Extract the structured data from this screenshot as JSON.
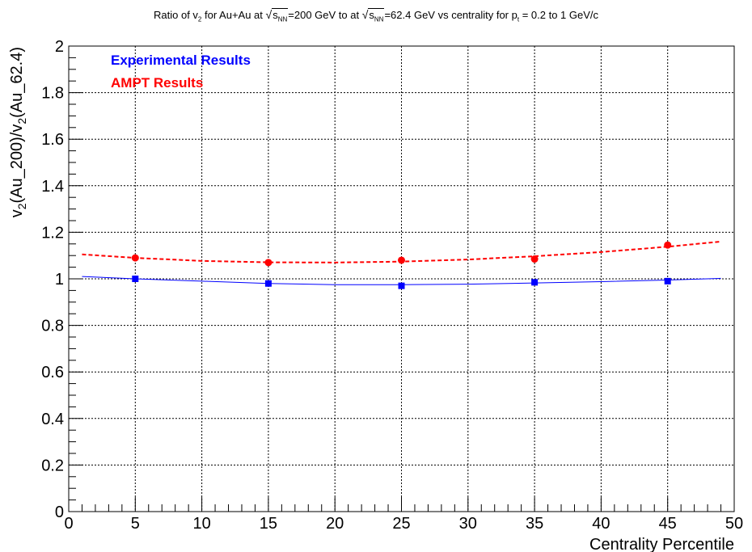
{
  "title": {
    "prefix": "Ratio of v",
    "sub1": "2",
    "mid1": " for Au+Au at ",
    "sqrt1_var": "s",
    "sqrt1_sub": "NN",
    "mid2": "=200 GeV to at ",
    "sqrt2_var": "s",
    "sqrt2_sub": "NN",
    "mid3": "=62.4 GeV vs centrality for p",
    "sub2": "t",
    "suffix": " = 0.2 to 1 GeV/c"
  },
  "chart_data": {
    "type": "scatter",
    "xlabel": "Centrality Percentile",
    "ylabel": {
      "a": "v",
      "a_sub": "2",
      "b": "(Au_200)/v",
      "b_sub": "2",
      "c": "(Au_62.4)"
    },
    "xlim": [
      0,
      50
    ],
    "ylim": [
      0,
      2
    ],
    "x_ticks": [
      0,
      5,
      10,
      15,
      20,
      25,
      30,
      35,
      40,
      45,
      50
    ],
    "y_ticks": [
      0,
      0.2,
      0.4,
      0.6,
      0.8,
      1,
      1.2,
      1.4,
      1.6,
      1.8,
      2
    ],
    "y_tick_labels": [
      "0",
      "0.2",
      "0.4",
      "0.6",
      "0.8",
      "1",
      "1.2",
      "1.4",
      "1.6",
      "1.8",
      "2"
    ],
    "grid": true,
    "legend_position": "top-left",
    "series": [
      {
        "name": "Experimental Results",
        "color": "#0000ff",
        "marker": "square",
        "x": [
          5,
          15,
          25,
          35,
          45
        ],
        "y": [
          1.0,
          0.98,
          0.97,
          0.985,
          0.99
        ],
        "fit": {
          "style": "solid",
          "x": [
            1,
            5,
            10,
            15,
            20,
            25,
            30,
            35,
            40,
            45,
            49
          ],
          "y": [
            1.01,
            1.0,
            0.99,
            0.98,
            0.975,
            0.975,
            0.977,
            0.982,
            0.988,
            0.995,
            1.002
          ]
        }
      },
      {
        "name": "AMPT Results",
        "color": "#ff0000",
        "marker": "circle",
        "x": [
          5,
          15,
          25,
          35,
          45
        ],
        "y": [
          1.09,
          1.07,
          1.08,
          1.085,
          1.145
        ],
        "fit": {
          "style": "dashed",
          "x": [
            1,
            5,
            10,
            15,
            20,
            25,
            30,
            35,
            40,
            45,
            49
          ],
          "y": [
            1.105,
            1.09,
            1.077,
            1.071,
            1.07,
            1.074,
            1.083,
            1.097,
            1.115,
            1.138,
            1.16
          ]
        }
      }
    ]
  }
}
